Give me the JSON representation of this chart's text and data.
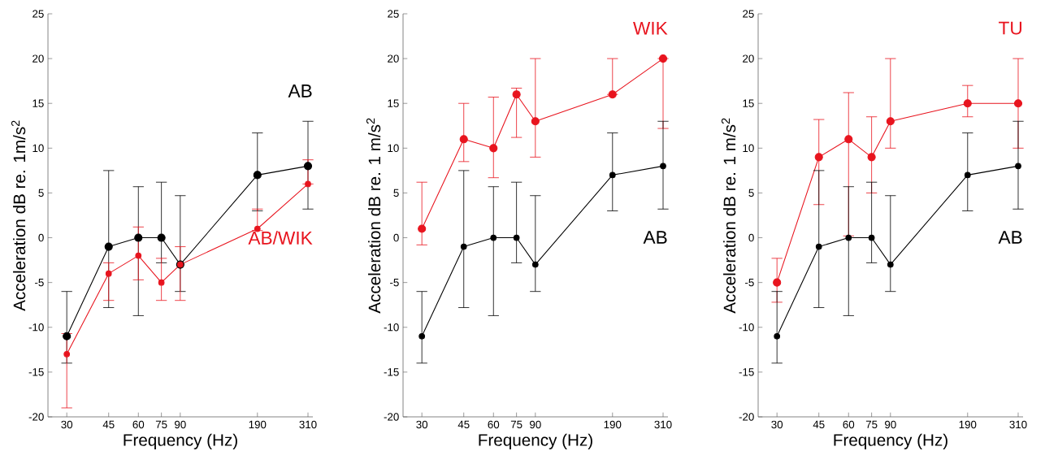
{
  "chart_data": [
    {
      "type": "line",
      "xlabel": "Frequency (Hz)",
      "ylabel": "Acceleration dB re. 1m/s$^{2}$",
      "log": "x",
      "x": [
        30,
        45,
        60,
        75,
        90,
        190,
        310
      ],
      "xlim": [
        25,
        325
      ],
      "xticks": [
        30,
        45,
        60,
        75,
        90,
        190,
        310
      ],
      "ylim": [
        -20,
        25
      ],
      "yticks": [
        -20,
        -15,
        -10,
        -5,
        0,
        5,
        10,
        15,
        20,
        25
      ],
      "marker": "circle",
      "legend": false,
      "series": [
        {
          "name": "AB",
          "color": "#000000",
          "values": [
            -11,
            -1,
            0,
            0,
            -3,
            7,
            8
          ],
          "errors": [
            [
              -14,
              -6
            ],
            [
              -7.8,
              7.5
            ],
            [
              -8.7,
              5.7
            ],
            [
              -2.8,
              6.2
            ],
            [
              -6,
              4.7
            ],
            [
              3,
              11.7
            ],
            [
              3.2,
              13
            ]
          ]
        },
        {
          "name": "AB/WIK",
          "color": "#e8141e",
          "values": [
            -13,
            -4,
            -2,
            -5,
            -3,
            1,
            6
          ],
          "errors": [
            [
              -19,
              -10.7
            ],
            [
              -7,
              -2.8
            ],
            [
              -4.7,
              1.2
            ],
            [
              -7,
              -2.3
            ],
            [
              -7,
              -1
            ],
            [
              0.8,
              3.2
            ],
            [
              6,
              8.7
            ]
          ]
        }
      ]
    },
    {
      "type": "line",
      "xlabel": "Frequency (Hz)",
      "ylabel": "Acceleration dB re. 1 m/s$^{2}$",
      "log": "x",
      "x": [
        30,
        45,
        60,
        75,
        90,
        190,
        310
      ],
      "xlim": [
        25,
        325
      ],
      "xticks": [
        30,
        45,
        60,
        75,
        90,
        190,
        310
      ],
      "ylim": [
        -20,
        25
      ],
      "yticks": [
        -20,
        -15,
        -10,
        -5,
        0,
        5,
        10,
        15,
        20,
        25
      ],
      "marker": "circle",
      "legend": false,
      "series": [
        {
          "name": "WIK",
          "color": "#e8141e",
          "values": [
            1,
            11,
            10,
            16,
            13,
            16,
            20
          ],
          "errors": [
            [
              -0.8,
              6.2
            ],
            [
              8.5,
              15
            ],
            [
              6.7,
              15.7
            ],
            [
              11.2,
              16.7
            ],
            [
              9,
              20
            ],
            [
              16,
              20
            ],
            [
              12.2,
              20
            ]
          ]
        },
        {
          "name": "AB",
          "color": "#000000",
          "values": [
            -11,
            -1,
            0,
            0,
            -3,
            7,
            8
          ],
          "errors": [
            [
              -14,
              -6
            ],
            [
              -7.8,
              7.5
            ],
            [
              -8.7,
              5.7
            ],
            [
              -2.8,
              6.2
            ],
            [
              -6,
              4.7
            ],
            [
              3,
              11.7
            ],
            [
              3.2,
              13
            ]
          ]
        }
      ]
    },
    {
      "type": "line",
      "xlabel": "Frequency (Hz)",
      "ylabel": "Acceleration dB re. 1 m/s$^{2}$",
      "log": "x",
      "x": [
        30,
        45,
        60,
        75,
        90,
        190,
        310
      ],
      "xlim": [
        25,
        325
      ],
      "xticks": [
        30,
        45,
        60,
        75,
        90,
        190,
        310
      ],
      "ylim": [
        -20,
        25
      ],
      "yticks": [
        -20,
        -15,
        -10,
        -5,
        0,
        5,
        10,
        15,
        20,
        25
      ],
      "marker": "circle",
      "legend": false,
      "series": [
        {
          "name": "TU",
          "color": "#e8141e",
          "values": [
            -5,
            9,
            11,
            9,
            13,
            15,
            15
          ],
          "errors": [
            [
              -7.2,
              -2.3
            ],
            [
              3.7,
              13.2
            ],
            [
              0.2,
              16.2
            ],
            [
              5,
              13.5
            ],
            [
              10,
              20
            ],
            [
              13.5,
              17
            ],
            [
              10,
              20
            ]
          ]
        },
        {
          "name": "AB",
          "color": "#000000",
          "values": [
            -11,
            -1,
            0,
            0,
            -3,
            7,
            8
          ],
          "errors": [
            [
              -14,
              -6
            ],
            [
              -7.8,
              7.5
            ],
            [
              -8.7,
              5.7
            ],
            [
              -2.8,
              6.2
            ],
            [
              -6,
              4.7
            ],
            [
              3,
              11.7
            ],
            [
              3.2,
              13
            ]
          ]
        }
      ]
    }
  ]
}
